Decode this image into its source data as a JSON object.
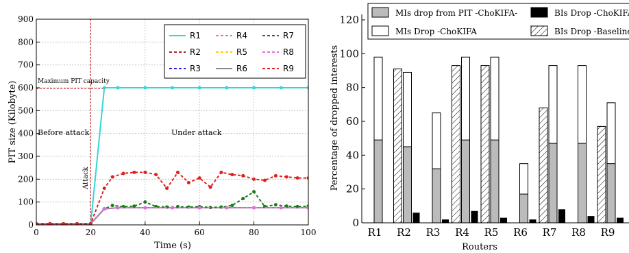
{
  "chart_data": [
    {
      "type": "line",
      "xlabel": "Time (s)",
      "ylabel": "PIT size (Kilobyte)",
      "xlim": [
        0,
        100
      ],
      "ylim": [
        0,
        900
      ],
      "xticks": [
        0,
        20,
        40,
        60,
        80,
        100
      ],
      "yticks": [
        0,
        100,
        200,
        300,
        400,
        500,
        600,
        700,
        800,
        900
      ],
      "grid": true,
      "legend_position": "top-right",
      "annotations": {
        "capacity": "Maximum PIT capacity",
        "before": "Before attack",
        "under": "Under attack",
        "attack": "Attack"
      },
      "attack_time": 20,
      "capacity_value": 600,
      "series": [
        {
          "name": "R1",
          "color": "#33d6d6",
          "style": "solid",
          "x": [
            0,
            20,
            25,
            30,
            40,
            50,
            60,
            70,
            80,
            90,
            100
          ],
          "y": [
            5,
            5,
            600,
            600,
            600,
            600,
            600,
            600,
            600,
            600,
            600
          ]
        },
        {
          "name": "R2",
          "color": "#b22222",
          "style": "dashed",
          "x": [
            0,
            20,
            25,
            30,
            40,
            50,
            60,
            70,
            80,
            90,
            100
          ],
          "y": [
            5,
            5,
            70,
            75,
            75,
            75,
            75,
            75,
            75,
            75,
            75
          ]
        },
        {
          "name": "R3",
          "color": "#1f1fd6",
          "style": "dashed",
          "x": [
            0,
            20,
            25,
            30,
            40,
            50,
            60,
            70,
            80,
            90,
            100
          ],
          "y": [
            5,
            5,
            70,
            75,
            75,
            75,
            75,
            75,
            75,
            75,
            75
          ]
        },
        {
          "name": "R4",
          "color": "#f08060",
          "style": "dashed",
          "x": [
            0,
            20,
            25,
            30,
            40,
            50,
            60,
            70,
            80,
            90,
            100
          ],
          "y": [
            5,
            5,
            70,
            75,
            75,
            75,
            75,
            75,
            75,
            75,
            75
          ]
        },
        {
          "name": "R5",
          "color": "#ffcc00",
          "style": "dashed",
          "x": [
            0,
            20,
            25,
            30,
            40,
            50,
            60,
            70,
            80,
            90,
            100
          ],
          "y": [
            5,
            5,
            70,
            75,
            75,
            75,
            75,
            75,
            75,
            75,
            75
          ]
        },
        {
          "name": "R6",
          "color": "#888888",
          "style": "solid",
          "x": [
            0,
            20,
            25,
            30,
            40,
            50,
            60,
            70,
            80,
            90,
            100
          ],
          "y": [
            5,
            5,
            70,
            75,
            75,
            75,
            75,
            75,
            75,
            75,
            75
          ]
        },
        {
          "name": "R7",
          "color": "#1a7a1a",
          "style": "dashed",
          "x": [
            0,
            5,
            10,
            15,
            20,
            25,
            28,
            32,
            36,
            40,
            44,
            48,
            52,
            56,
            60,
            64,
            68,
            72,
            76,
            80,
            84,
            88,
            92,
            96,
            100
          ],
          "y": [
            5,
            5,
            5,
            5,
            5,
            70,
            85,
            80,
            82,
            100,
            80,
            78,
            80,
            78,
            80,
            76,
            78,
            85,
            115,
            145,
            80,
            88,
            82,
            80,
            82
          ]
        },
        {
          "name": "R8",
          "color": "#e070e0",
          "style": "dashed",
          "x": [
            0,
            20,
            25,
            30,
            40,
            50,
            60,
            70,
            80,
            90,
            100
          ],
          "y": [
            5,
            5,
            70,
            75,
            75,
            75,
            75,
            75,
            75,
            75,
            75
          ]
        },
        {
          "name": "R9",
          "color": "#e02020",
          "style": "dashed",
          "x": [
            0,
            5,
            10,
            15,
            20,
            25,
            28,
            32,
            36,
            40,
            44,
            48,
            52,
            56,
            60,
            64,
            68,
            72,
            76,
            80,
            84,
            88,
            92,
            96,
            100
          ],
          "y": [
            5,
            5,
            5,
            5,
            5,
            160,
            210,
            225,
            230,
            230,
            220,
            160,
            230,
            185,
            205,
            165,
            230,
            220,
            215,
            200,
            195,
            215,
            210,
            205,
            205
          ]
        }
      ]
    },
    {
      "type": "bar",
      "xlabel": "Routers",
      "ylabel": "Percentage of dropped interests",
      "ylim": [
        0,
        120
      ],
      "yticks": [
        0,
        20,
        40,
        60,
        80,
        100,
        120
      ],
      "categories": [
        "R1",
        "R2",
        "R3",
        "R4",
        "R5",
        "R6",
        "R7",
        "R8",
        "R9"
      ],
      "legend_position": "top",
      "series": [
        {
          "name": "MIs drop from PIT -ChoKIFA-",
          "pattern": "gray",
          "values": [
            49,
            45,
            32,
            49,
            49,
            17,
            47,
            47,
            35
          ]
        },
        {
          "name": "MIs Drop -ChoKIFA",
          "pattern": "white",
          "values": [
            98,
            89,
            65,
            98,
            98,
            35,
            93,
            93,
            71
          ]
        },
        {
          "name": "BIs Drop -ChoKIFA",
          "pattern": "black",
          "values": [
            0,
            6,
            2,
            7,
            3,
            2,
            8,
            4,
            3
          ]
        },
        {
          "name": "BIs Drop -Baseline",
          "pattern": "hatch",
          "values": [
            0,
            91,
            0,
            93,
            93,
            0,
            68,
            0,
            57
          ]
        }
      ]
    }
  ]
}
